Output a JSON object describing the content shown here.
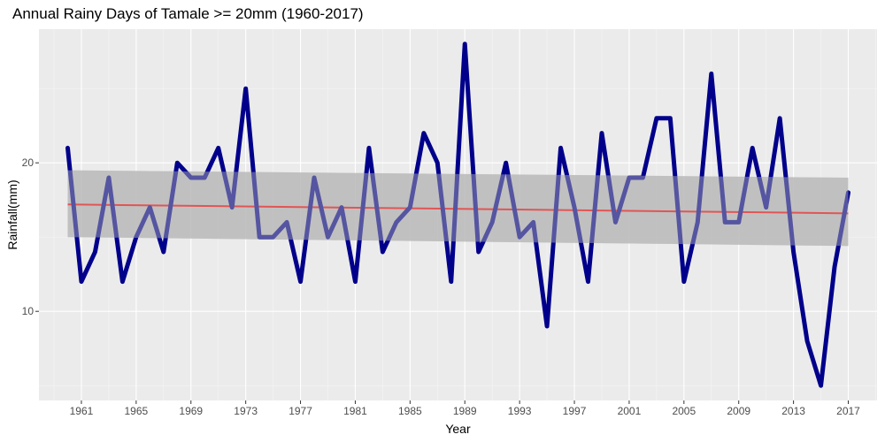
{
  "chart_data": {
    "type": "line",
    "title": "Annual Rainy Days of Tamale >= 20mm (1960-2017)",
    "xlabel": "Year",
    "ylabel": "Rainfall(mm)",
    "xlim": [
      1957.9,
      2019.1
    ],
    "ylim": [
      4.0,
      29.0
    ],
    "x_ticks": [
      1961,
      1965,
      1969,
      1973,
      1977,
      1981,
      1985,
      1989,
      1993,
      1997,
      2001,
      2005,
      2009,
      2013,
      2017
    ],
    "y_ticks": [
      10,
      20
    ],
    "grid": true,
    "series": [
      {
        "role": "observed",
        "color": "#00008b",
        "x": [
          1960,
          1961,
          1962,
          1963,
          1964,
          1965,
          1966,
          1967,
          1968,
          1969,
          1970,
          1971,
          1972,
          1973,
          1974,
          1975,
          1976,
          1977,
          1978,
          1979,
          1980,
          1981,
          1982,
          1983,
          1984,
          1985,
          1986,
          1987,
          1988,
          1989,
          1990,
          1991,
          1992,
          1993,
          1994,
          1995,
          1996,
          1997,
          1998,
          1999,
          2000,
          2001,
          2002,
          2003,
          2004,
          2005,
          2006,
          2007,
          2008,
          2009,
          2010,
          2011,
          2012,
          2013,
          2014,
          2015,
          2016,
          2017
        ],
        "values": [
          21,
          12,
          14,
          19,
          12,
          15,
          17,
          14,
          20,
          19,
          19,
          21,
          17,
          25,
          15,
          15,
          16,
          12,
          19,
          15,
          17,
          12,
          21,
          14,
          16,
          17,
          22,
          20,
          12,
          28,
          14,
          16,
          20,
          15,
          16,
          9,
          21,
          17,
          12,
          22,
          16,
          19,
          19,
          23,
          23,
          12,
          16,
          26,
          16,
          16,
          21,
          17,
          23,
          14,
          8,
          5,
          13,
          18
        ]
      },
      {
        "role": "linear-trend",
        "color": "#ff0000",
        "x": [
          1960,
          2017
        ],
        "values": [
          17.2,
          16.6
        ]
      }
    ],
    "confidence_band": {
      "color": "#bdbdbd",
      "x": [
        1960,
        2017
      ],
      "upper": [
        19.5,
        19.0
      ],
      "lower": [
        15.0,
        14.4
      ]
    }
  }
}
